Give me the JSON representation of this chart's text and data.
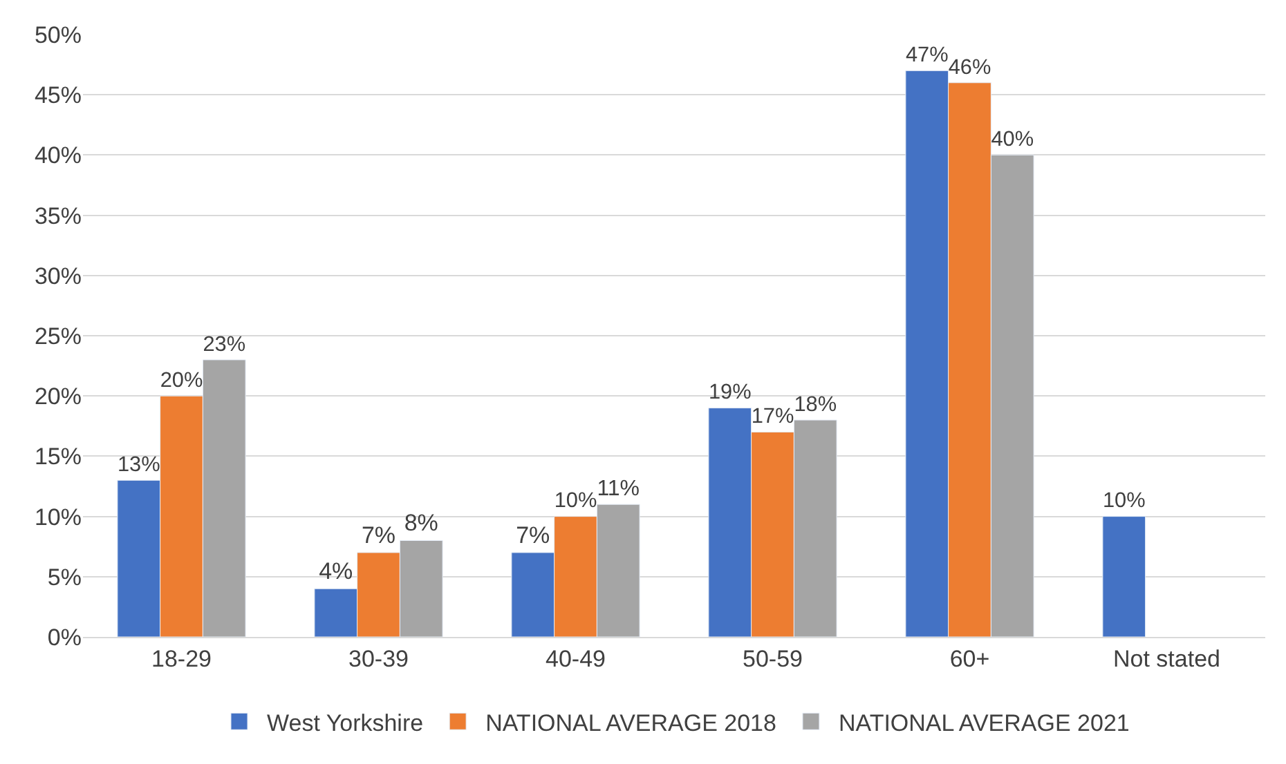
{
  "chart_data": {
    "type": "bar",
    "categories": [
      "18-29",
      "30-39",
      "40-49",
      "50-59",
      "60+",
      "Not stated"
    ],
    "series": [
      {
        "name": "West Yorkshire",
        "color": "#4472c4",
        "values": [
          13,
          4,
          7,
          19,
          47,
          10
        ],
        "value_labels": [
          "13%",
          "4%",
          "7%",
          "19%",
          "47%",
          "10%"
        ]
      },
      {
        "name": "NATIONAL AVERAGE 2018",
        "color": "#ed7d31",
        "values": [
          20,
          7,
          10,
          17,
          46,
          null
        ],
        "value_labels": [
          "20%",
          "7%",
          "10%",
          "17%",
          "46%",
          null
        ]
      },
      {
        "name": "NATIONAL AVERAGE 2021",
        "color": "#a5a5a5",
        "values": [
          23,
          8,
          11,
          18,
          40,
          null
        ],
        "value_labels": [
          "23%",
          "8%",
          "11%",
          "18%",
          "40%",
          null
        ]
      }
    ],
    "ylim": [
      0,
      50
    ],
    "yticks": [
      {
        "value": 0,
        "label": "0%"
      },
      {
        "value": 5,
        "label": "5%"
      },
      {
        "value": 10,
        "label": "10%"
      },
      {
        "value": 15,
        "label": "15%"
      },
      {
        "value": 20,
        "label": "20%"
      },
      {
        "value": 25,
        "label": "25%"
      },
      {
        "value": 30,
        "label": "30%"
      },
      {
        "value": 35,
        "label": "35%"
      },
      {
        "value": 40,
        "label": "40%"
      },
      {
        "value": 45,
        "label": "45%"
      },
      {
        "value": 50,
        "label": "50%"
      }
    ],
    "grid": "y",
    "legend": "bottom"
  }
}
